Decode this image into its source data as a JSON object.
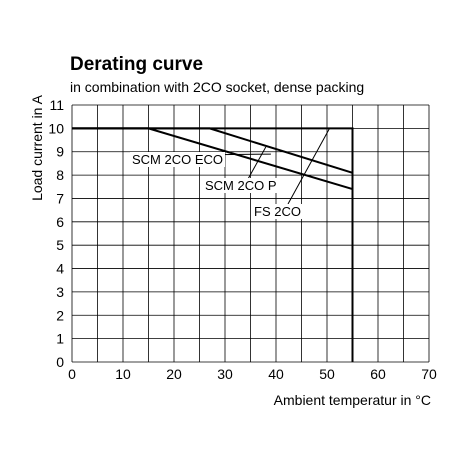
{
  "chart_data": {
    "type": "line",
    "title": "Derating curve",
    "subtitle": "in combination with 2CO socket, dense packing",
    "xlabel": "Ambient temperatur in °C",
    "ylabel": "Load  current in A",
    "xlim": [
      0,
      70
    ],
    "ylim": [
      0,
      11
    ],
    "x_ticks": [
      "0",
      "10",
      "20",
      "30",
      "40",
      "50",
      "60",
      "70"
    ],
    "y_ticks": [
      "0",
      "1",
      "2",
      "3",
      "4",
      "5",
      "6",
      "7",
      "8",
      "9",
      "10",
      "11"
    ],
    "grid": true,
    "series": [
      {
        "name": "SCM 2CO ECO",
        "x": [
          0,
          15,
          55
        ],
        "y": [
          10,
          10,
          7.4
        ]
      },
      {
        "name": "SCM 2CO P",
        "x": [
          0,
          27,
          55
        ],
        "y": [
          10,
          10,
          8.1
        ]
      },
      {
        "name": "FS 2CO",
        "x": [
          0,
          55,
          55
        ],
        "y": [
          10,
          10,
          0
        ]
      }
    ],
    "annotations": [
      {
        "text": "SCM 2CO ECO",
        "target_series": 0,
        "target_x": 39,
        "target_y": 8.9
      },
      {
        "text": "SCM 2CO P",
        "target_series": 1,
        "target_x": 38,
        "target_y": 9.2
      },
      {
        "text": "FS 2CO",
        "target_series": 2,
        "target_x": 50.5,
        "target_y": 10
      }
    ]
  }
}
